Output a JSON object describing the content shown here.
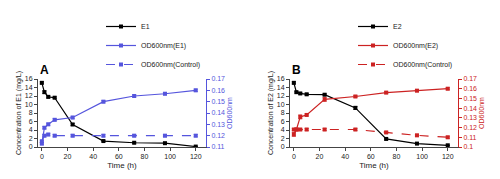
{
  "chart_data": [
    {
      "type": "line",
      "title": "A",
      "xlabel": "Time (h)",
      "ylabel": "Concentration of E1 (mg/L)",
      "y2label": "OD600nm",
      "x": [
        0,
        2,
        5,
        10,
        24,
        48,
        72,
        96,
        120
      ],
      "series": [
        {
          "name": "E1",
          "color": "#000000",
          "marker": "square",
          "line_style": "solid",
          "values": [
            15.1,
            12.9,
            11.8,
            11.6,
            5.3,
            1.4,
            1.0,
            0.9,
            0.1
          ],
          "errors": [
            0.25,
            0.3,
            0.25,
            0.2,
            0.25,
            0.15,
            0.1,
            0.1,
            0.05
          ]
        },
        {
          "name": "OD600nm(E1)",
          "color": "#5555dd",
          "axis": "y2",
          "marker": "square",
          "line_style": "solid",
          "values": [
            0.113,
            0.127,
            0.13,
            0.134,
            0.136,
            0.15,
            0.155,
            0.157,
            0.16
          ],
          "errors": [
            0.001,
            0.001,
            0.001,
            0.001,
            0.001,
            0.001,
            0.001,
            0.001,
            0.001
          ]
        },
        {
          "name": "OD600nm(Control)",
          "color": "#5555dd",
          "axis": "y2",
          "marker": "square",
          "line_style": "dashed",
          "values": [
            0.115,
            0.12,
            0.121,
            0.12,
            0.12,
            0.12,
            0.12,
            0.12,
            0.12
          ],
          "errors": [
            0.001,
            0.001,
            0.001,
            0.001,
            0.001,
            0.001,
            0.001,
            0.001,
            0.001
          ]
        }
      ],
      "xlim": [
        -3,
        128
      ],
      "xticks": [
        0,
        20,
        40,
        60,
        80,
        100,
        120
      ],
      "ylim": [
        0,
        16
      ],
      "yticks": [
        0,
        2,
        4,
        6,
        8,
        10,
        12,
        14,
        16
      ],
      "y2lim": [
        0.11,
        0.17
      ],
      "y2ticks": [
        0.11,
        0.12,
        0.13,
        0.14,
        0.15,
        0.16,
        0.17
      ],
      "legend": "upper right",
      "grid": false
    },
    {
      "type": "line",
      "title": "B",
      "xlabel": "Time (h)",
      "ylabel": "Concentration of E2 (mg/L)",
      "y2label": "OD600nm",
      "x": [
        0,
        2,
        5,
        10,
        24,
        48,
        72,
        96,
        120
      ],
      "series": [
        {
          "name": "E2",
          "color": "#000000",
          "marker": "square",
          "line_style": "solid",
          "values": [
            15.1,
            12.9,
            12.6,
            12.4,
            12.3,
            9.2,
            1.9,
            0.8,
            0.4
          ],
          "errors": [
            0.25,
            0.2,
            0.2,
            0.2,
            0.2,
            0.35,
            0.2,
            0.1,
            0.05
          ]
        },
        {
          "name": "OD600nm(E2)",
          "color": "#cc2222",
          "axis": "y2",
          "marker": "square",
          "line_style": "solid",
          "values": [
            0.113,
            0.118,
            0.131,
            0.133,
            0.149,
            0.152,
            0.156,
            0.158,
            0.16
          ],
          "errors": [
            0.002,
            0.001,
            0.002,
            0.001,
            0.002,
            0.001,
            0.001,
            0.001,
            0.001
          ]
        },
        {
          "name": "OD600nm(Control)",
          "color": "#cc2222",
          "axis": "y2",
          "marker": "square",
          "line_style": "dashed",
          "values": [
            0.118,
            0.118,
            0.118,
            0.118,
            0.118,
            0.118,
            0.115,
            0.112,
            0.11
          ],
          "errors": [
            0.001,
            0.001,
            0.001,
            0.001,
            0.001,
            0.001,
            0.001,
            0.001,
            0.001
          ]
        }
      ],
      "xlim": [
        -3,
        128
      ],
      "xticks": [
        0,
        20,
        40,
        60,
        80,
        100,
        120
      ],
      "ylim": [
        0,
        16
      ],
      "yticks": [
        0,
        2,
        4,
        6,
        8,
        10,
        12,
        14,
        16
      ],
      "y2lim": [
        0.1,
        0.17
      ],
      "y2ticks": [
        0.1,
        0.11,
        0.12,
        0.13,
        0.14,
        0.15,
        0.16,
        0.17
      ],
      "legend": "upper right",
      "grid": false
    }
  ]
}
